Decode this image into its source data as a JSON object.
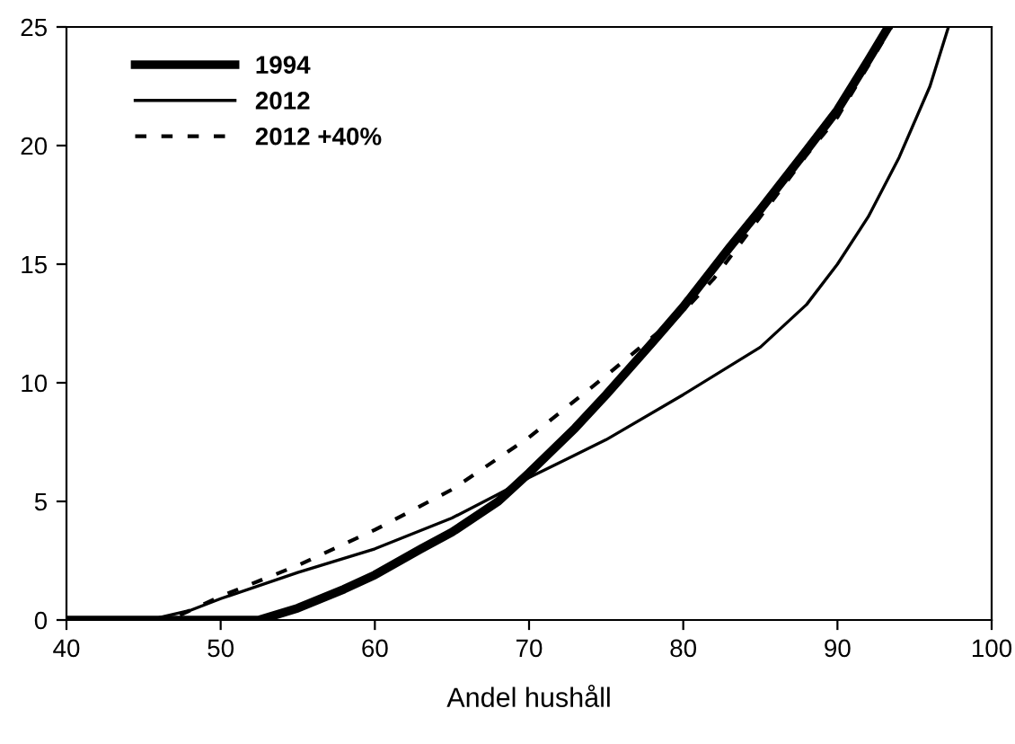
{
  "chart_data": {
    "type": "line",
    "xlabel": "Andel hushåll",
    "xlim": [
      40,
      100
    ],
    "xticks": [
      40,
      50,
      60,
      70,
      80,
      90,
      100
    ],
    "ylim": [
      0,
      25
    ],
    "yticks": [
      0,
      5,
      10,
      15,
      20,
      25
    ],
    "grid": false,
    "legend": "top left",
    "marker": "none",
    "series": [
      {
        "name": "1994",
        "color": "#000000",
        "line_style": "solid",
        "x": [
          40,
          50,
          52.5,
          55,
          58,
          60,
          63,
          65,
          68,
          70,
          73,
          75,
          78,
          80,
          83,
          85,
          88,
          90,
          92,
          93.3
        ],
        "values": [
          0,
          0,
          0,
          0.5,
          1.3,
          1.9,
          3.0,
          3.7,
          5.0,
          6.2,
          8.1,
          9.5,
          11.7,
          13.2,
          15.7,
          17.3,
          19.8,
          21.5,
          23.6,
          25
        ]
      },
      {
        "name": "2012",
        "color": "#000000",
        "line_style": "solid",
        "x": [
          40,
          44,
          46,
          48,
          50,
          55,
          60,
          65,
          68,
          70,
          75,
          80,
          85,
          88,
          90,
          92,
          94,
          96,
          97.2
        ],
        "values": [
          0,
          0,
          0.1,
          0.4,
          0.9,
          2.0,
          3.0,
          4.3,
          5.3,
          6.0,
          7.6,
          9.5,
          11.5,
          13.3,
          15.0,
          17.0,
          19.5,
          22.5,
          25
        ]
      },
      {
        "name": "2012 +40%",
        "color": "#000000",
        "line_style": "dashed",
        "x": [
          44,
          47,
          50,
          55,
          60,
          65,
          70,
          75,
          80,
          82,
          85,
          88,
          90,
          93.5
        ],
        "values": [
          0,
          0.1,
          1.0,
          2.3,
          3.8,
          5.5,
          7.7,
          10.3,
          13.0,
          14.4,
          17.0,
          19.6,
          21.2,
          25
        ]
      }
    ]
  }
}
